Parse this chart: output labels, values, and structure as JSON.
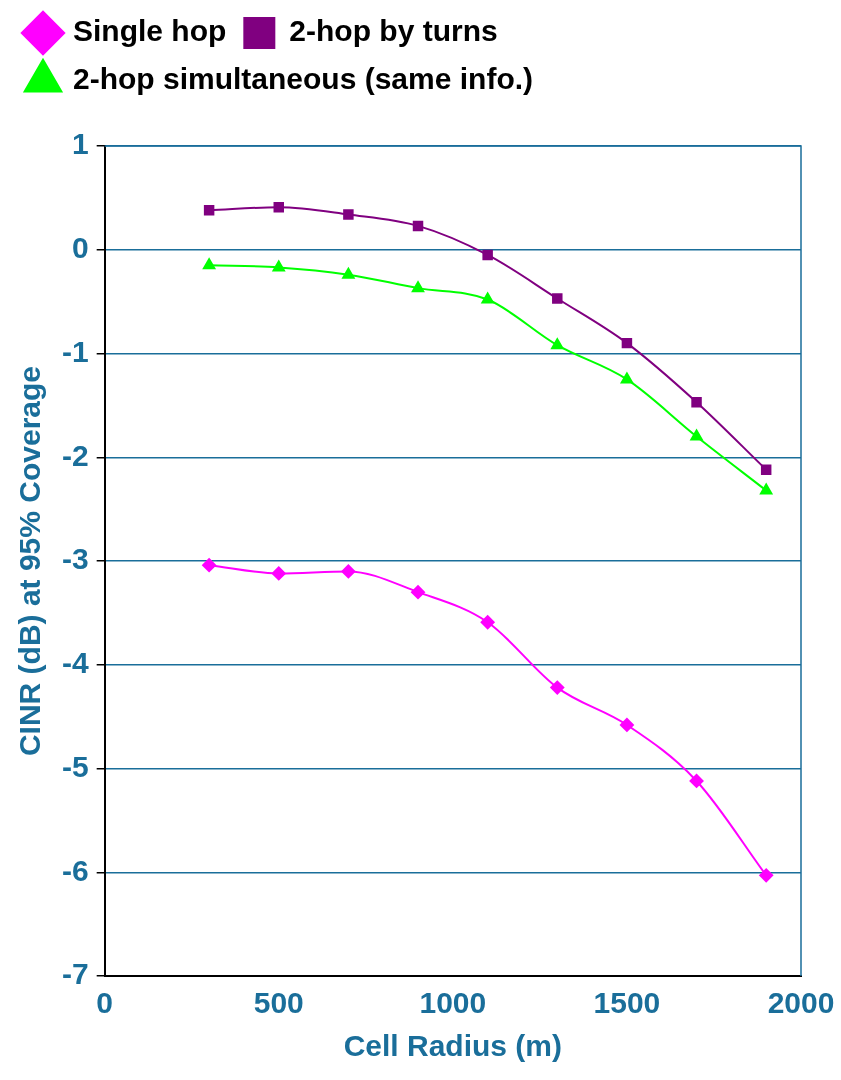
{
  "chart_data": {
    "type": "line",
    "xlabel": "Cell Radius (m)",
    "ylabel": "CINR (dB) at 95% Coverage",
    "x": [
      300,
      500,
      700,
      900,
      1100,
      1300,
      1500,
      1700,
      1900
    ],
    "series": [
      {
        "name": "Single hop",
        "color": "#ff00ff",
        "marker": "diamond",
        "values": [
          -3.04,
          -3.12,
          -3.1,
          -3.3,
          -3.59,
          -4.22,
          -4.58,
          -5.12,
          -6.03
        ]
      },
      {
        "name": "2-hop by turns",
        "color": "#800080",
        "marker": "square",
        "values": [
          0.38,
          0.41,
          0.34,
          0.23,
          -0.05,
          -0.47,
          -0.9,
          -1.47,
          -2.12
        ]
      },
      {
        "name": "2-hop simultaneous (same info.)",
        "color": "#00ff00",
        "marker": "triangle",
        "values": [
          -0.15,
          -0.17,
          -0.24,
          -0.37,
          -0.48,
          -0.92,
          -1.25,
          -1.8,
          -2.32
        ]
      }
    ],
    "xlim": [
      0,
      2000
    ],
    "xticks": [
      0,
      500,
      1000,
      1500,
      2000
    ],
    "ylim": [
      -7,
      1
    ],
    "yticks": [
      -7,
      -6,
      -5,
      -4,
      -3,
      -2,
      -1,
      0,
      1
    ],
    "grid": "y",
    "legend": "top left",
    "line_style": "solid"
  }
}
